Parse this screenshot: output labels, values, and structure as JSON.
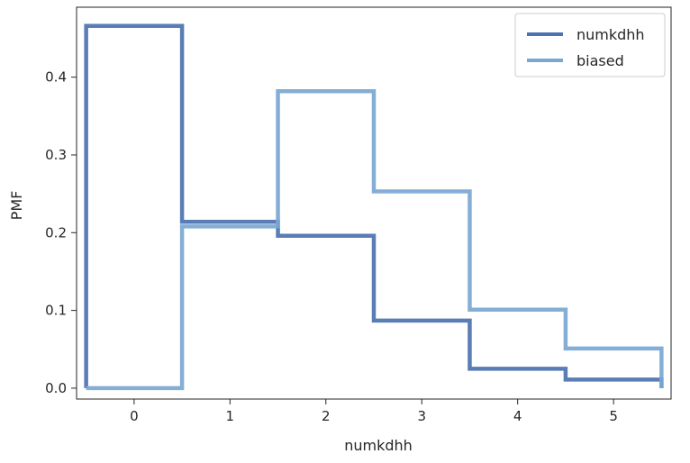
{
  "chart_data": {
    "type": "line",
    "drawstyle": "steps-mid",
    "xlabel": "numkdhh",
    "ylabel": "PMF",
    "xlim": [
      -0.6,
      5.6
    ],
    "ylim": [
      -0.014,
      0.49
    ],
    "xticks": [
      0,
      1,
      2,
      3,
      4,
      5
    ],
    "yticks": [
      0.0,
      0.1,
      0.2,
      0.3,
      0.4
    ],
    "ytick_labels": [
      "0.0",
      "0.1",
      "0.2",
      "0.3",
      "0.4"
    ],
    "grid": false,
    "legend_position": "top-right",
    "series": [
      {
        "name": "numkdhh",
        "color": "#4C72B0",
        "x": [
          0,
          1,
          2,
          3,
          4,
          5
        ],
        "y": [
          0.466,
          0.214,
          0.196,
          0.087,
          0.025,
          0.011
        ]
      },
      {
        "name": "biased",
        "color": "#7BA7D3",
        "x": [
          0,
          1,
          2,
          3,
          4,
          5
        ],
        "y": [
          0.0,
          0.208,
          0.382,
          0.253,
          0.101,
          0.051
        ]
      }
    ]
  }
}
